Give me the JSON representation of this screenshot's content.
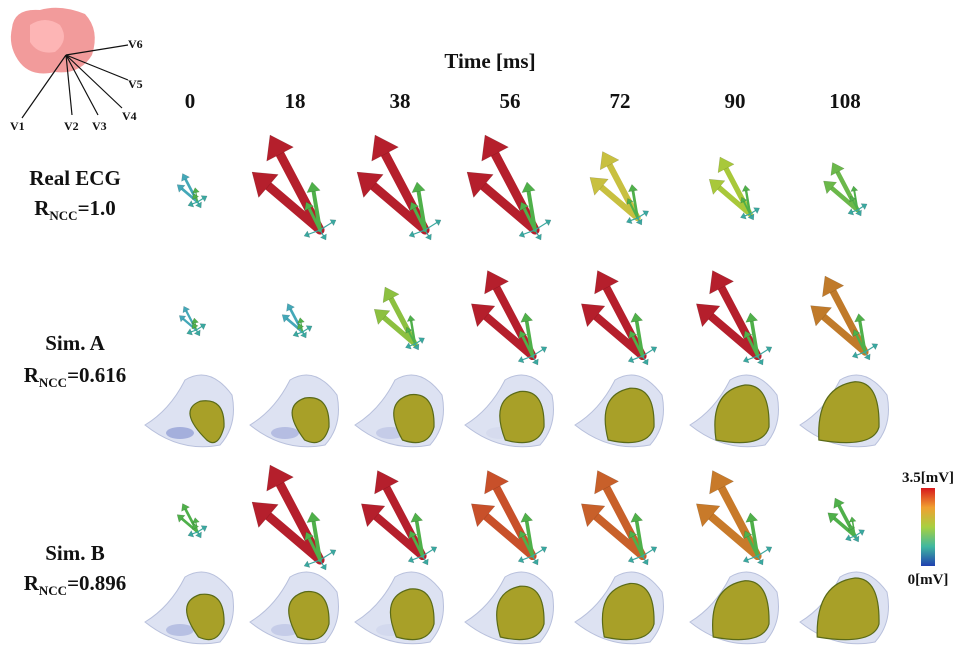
{
  "leads": [
    "V1",
    "V2",
    "V3",
    "V4",
    "V5",
    "V6"
  ],
  "time_axis": {
    "title": "Time [ms]",
    "labels": [
      "0",
      "18",
      "38",
      "56",
      "72",
      "90",
      "108"
    ]
  },
  "rows": [
    {
      "name": "Real ECG",
      "metric": "R",
      "metric_sub": "NCC",
      "metric_value": "=1.0"
    },
    {
      "name": "Sim. A",
      "metric": "R",
      "metric_sub": "NCC",
      "metric_value": "=0.616"
    },
    {
      "name": "Sim. B",
      "metric": "R",
      "metric_sub": "NCC",
      "metric_value": "=0.896"
    }
  ],
  "colorbar": {
    "max_label": "3.5[mV]",
    "min_label": "0[mV]"
  }
}
